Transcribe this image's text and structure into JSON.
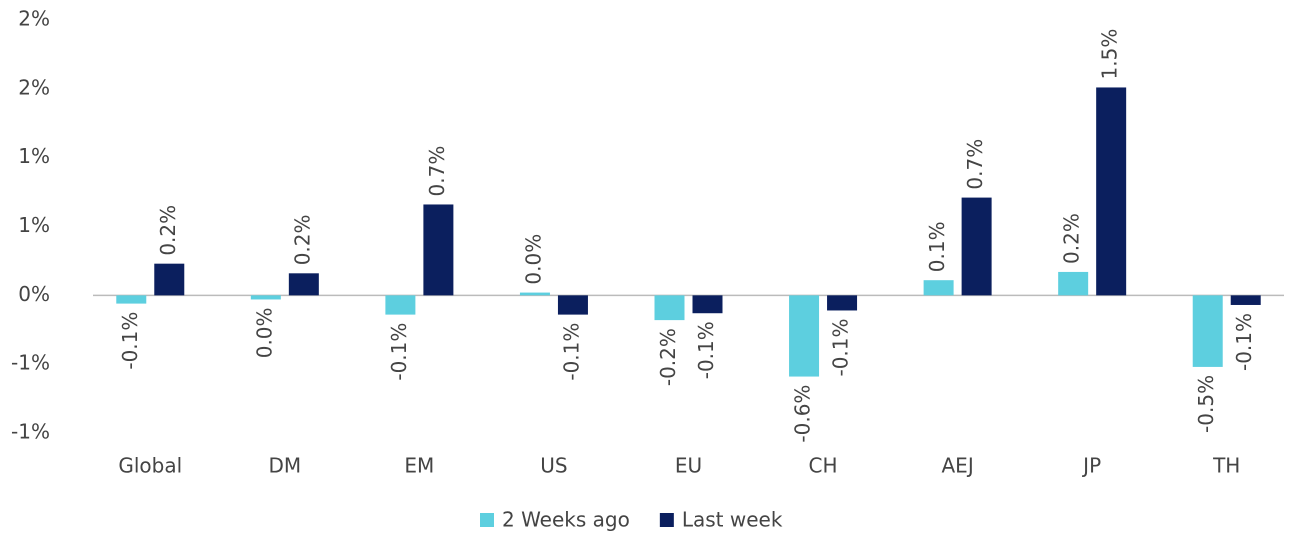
{
  "chart_data": {
    "type": "bar",
    "categories": [
      "Global",
      "DM",
      "EM",
      "US",
      "EU",
      "CH",
      "AEJ",
      "JP",
      "TH"
    ],
    "series": [
      {
        "name": "2 Weeks ago",
        "color": "#5dcfdf",
        "values": [
          -0.06,
          -0.03,
          -0.14,
          0.02,
          -0.18,
          -0.59,
          0.11,
          0.17,
          -0.52
        ],
        "value_labels": [
          "-0.1%",
          "0.0%",
          "-0.1%",
          "0.0%",
          "-0.2%",
          "-0.6%",
          "0.1%",
          "0.2%",
          "-0.5%"
        ]
      },
      {
        "name": "Last week",
        "color": "#0b1f5e",
        "values": [
          0.23,
          0.16,
          0.66,
          -0.14,
          -0.13,
          -0.11,
          0.71,
          1.51,
          -0.07
        ],
        "value_labels": [
          "0.2%",
          "0.2%",
          "0.7%",
          "-0.1%",
          "-0.1%",
          "-0.1%",
          "0.7%",
          "1.5%",
          "-0.1%"
        ]
      }
    ],
    "ylim": [
      -1.0,
      2.0
    ],
    "yticks": [
      {
        "value": -1.0,
        "label": "-1%"
      },
      {
        "value": -0.5,
        "label": "-1%"
      },
      {
        "value": 0,
        "label": "0%"
      },
      {
        "value": 0.5,
        "label": "1%"
      },
      {
        "value": 1.0,
        "label": "1%"
      },
      {
        "value": 1.5,
        "label": "2%"
      },
      {
        "value": 2.0,
        "label": "2%"
      }
    ],
    "grid": false,
    "legend": "bottom"
  }
}
